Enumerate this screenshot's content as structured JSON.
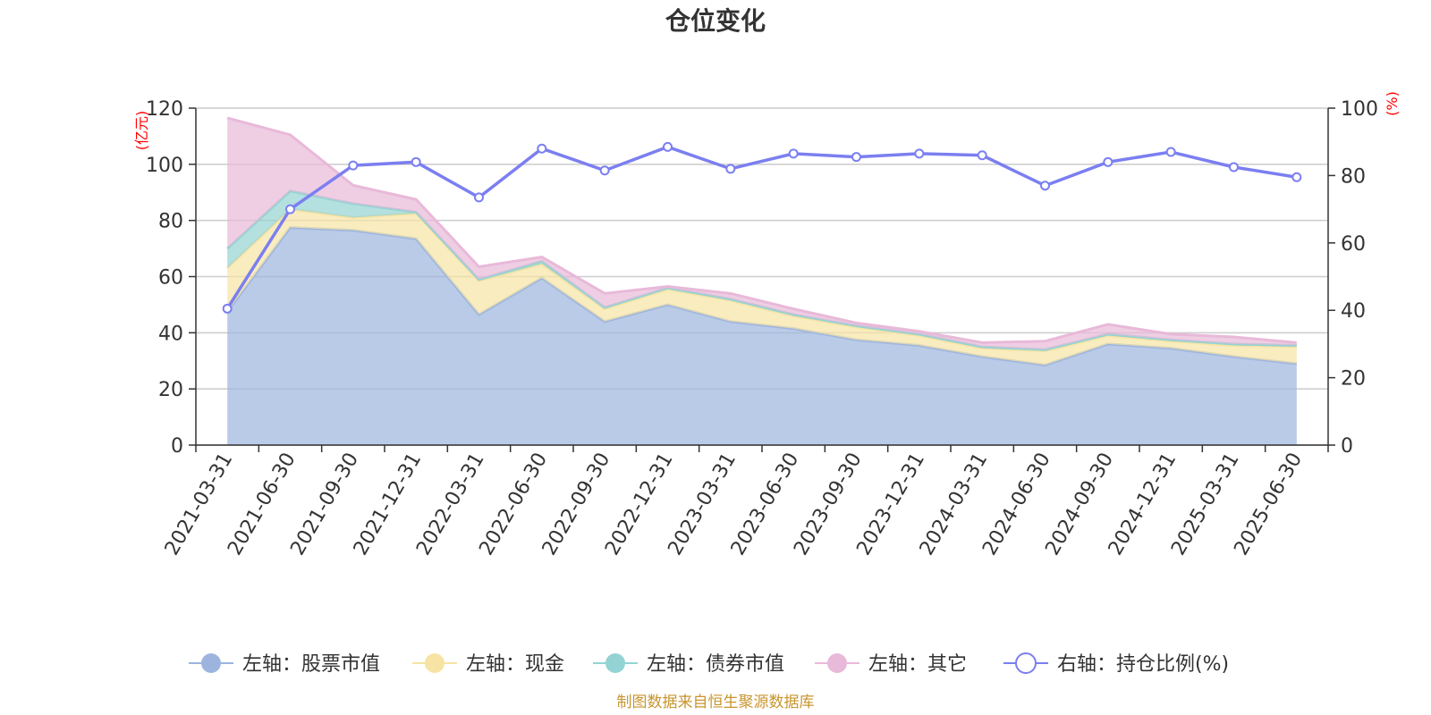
{
  "chart_data": {
    "type": "area",
    "title": "仓位变化",
    "left_unit": "(亿元)",
    "right_unit": "(%)",
    "ylim_left": [
      0,
      120
    ],
    "yticks_left": [
      0,
      20,
      40,
      60,
      80,
      100,
      120
    ],
    "ylim_right": [
      0,
      100
    ],
    "yticks_right": [
      0,
      20,
      40,
      60,
      80,
      100
    ],
    "grid": true,
    "legend_position": "bottom",
    "x": [
      "2021-03-31",
      "2021-06-30",
      "2021-09-30",
      "2021-12-31",
      "2022-03-31",
      "2022-06-30",
      "2022-09-30",
      "2022-12-31",
      "2023-03-31",
      "2023-06-30",
      "2023-09-30",
      "2023-12-31",
      "2024-03-31",
      "2024-06-30",
      "2024-09-30",
      "2024-12-31",
      "2025-03-31",
      "2025-06-30"
    ],
    "stacked_series": [
      {
        "name": "左轴：股票市值",
        "axis": "left",
        "color": "#9db5de",
        "values": [
          47.5,
          77.5,
          76.5,
          73.5,
          46.5,
          59.5,
          44.0,
          50.0,
          44.0,
          41.5,
          37.5,
          35.5,
          31.5,
          28.5,
          36.0,
          34.5,
          31.5,
          29.0
        ]
      },
      {
        "name": "左轴：现金",
        "axis": "left",
        "color": "#f7e4a4",
        "values": [
          15.5,
          6.5,
          4.5,
          9.0,
          12.0,
          5.0,
          4.5,
          5.5,
          7.5,
          4.5,
          4.5,
          3.5,
          3.0,
          5.0,
          3.0,
          2.5,
          4.0,
          6.0
        ]
      },
      {
        "name": "左轴：债券市值",
        "axis": "left",
        "color": "#94d3d3",
        "values": [
          7.0,
          6.5,
          5.0,
          0.5,
          0.5,
          1.0,
          0.5,
          0.5,
          0.5,
          0.5,
          0.5,
          0.5,
          0.5,
          0.5,
          0.5,
          0.5,
          0.5,
          0.5
        ]
      },
      {
        "name": "左轴：其它",
        "axis": "left",
        "color": "#e8b9d9",
        "values": [
          46.5,
          20.0,
          6.5,
          4.5,
          4.5,
          1.5,
          5.0,
          0.5,
          2.0,
          2.0,
          1.0,
          1.0,
          1.5,
          3.0,
          3.5,
          2.0,
          2.5,
          1.0
        ]
      }
    ],
    "line_series": {
      "name": "右轴：持仓比例(%)",
      "axis": "right",
      "color": "#7b7ff0",
      "values": [
        40.5,
        70.0,
        83.0,
        84.0,
        73.5,
        88.0,
        81.5,
        88.5,
        82.0,
        86.5,
        85.5,
        86.5,
        86.0,
        77.0,
        84.0,
        87.0,
        82.5,
        79.5
      ]
    },
    "source": "制图数据来自恒生聚源数据库"
  }
}
